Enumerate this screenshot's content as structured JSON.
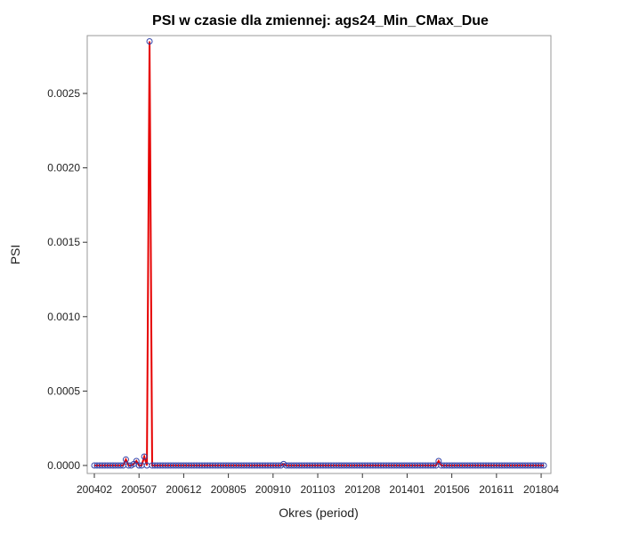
{
  "chart_data": {
    "type": "line",
    "title": "PSI w czasie dla zmiennej: ags24_Min_CMax_Due",
    "xlabel": "Okres (period)",
    "ylabel": "PSI",
    "xticks": [
      "200402",
      "200507",
      "200612",
      "200805",
      "200910",
      "201103",
      "201208",
      "201401",
      "201506",
      "201611",
      "201804"
    ],
    "yticks": [
      "0.0000",
      "0.0005",
      "0.0010",
      "0.0015",
      "0.0020",
      "0.0025"
    ],
    "ylim": [
      0,
      0.00285
    ],
    "grid": false,
    "legend": "none",
    "start_period": "200402",
    "end_period": "201805",
    "spikes": [
      {
        "period": "200502",
        "value": 4e-05
      },
      {
        "period": "200505",
        "value": 1e-05
      },
      {
        "period": "200506",
        "value": 3e-05
      },
      {
        "period": "200509",
        "value": 6e-05
      },
      {
        "period": "200511",
        "value": 0.00285
      },
      {
        "period": "201002",
        "value": 1e-05
      },
      {
        "period": "201501",
        "value": 3e-05
      }
    ],
    "baseline_value": 0.0,
    "line_color": "#e60000",
    "marker_color": "#3344aa"
  }
}
